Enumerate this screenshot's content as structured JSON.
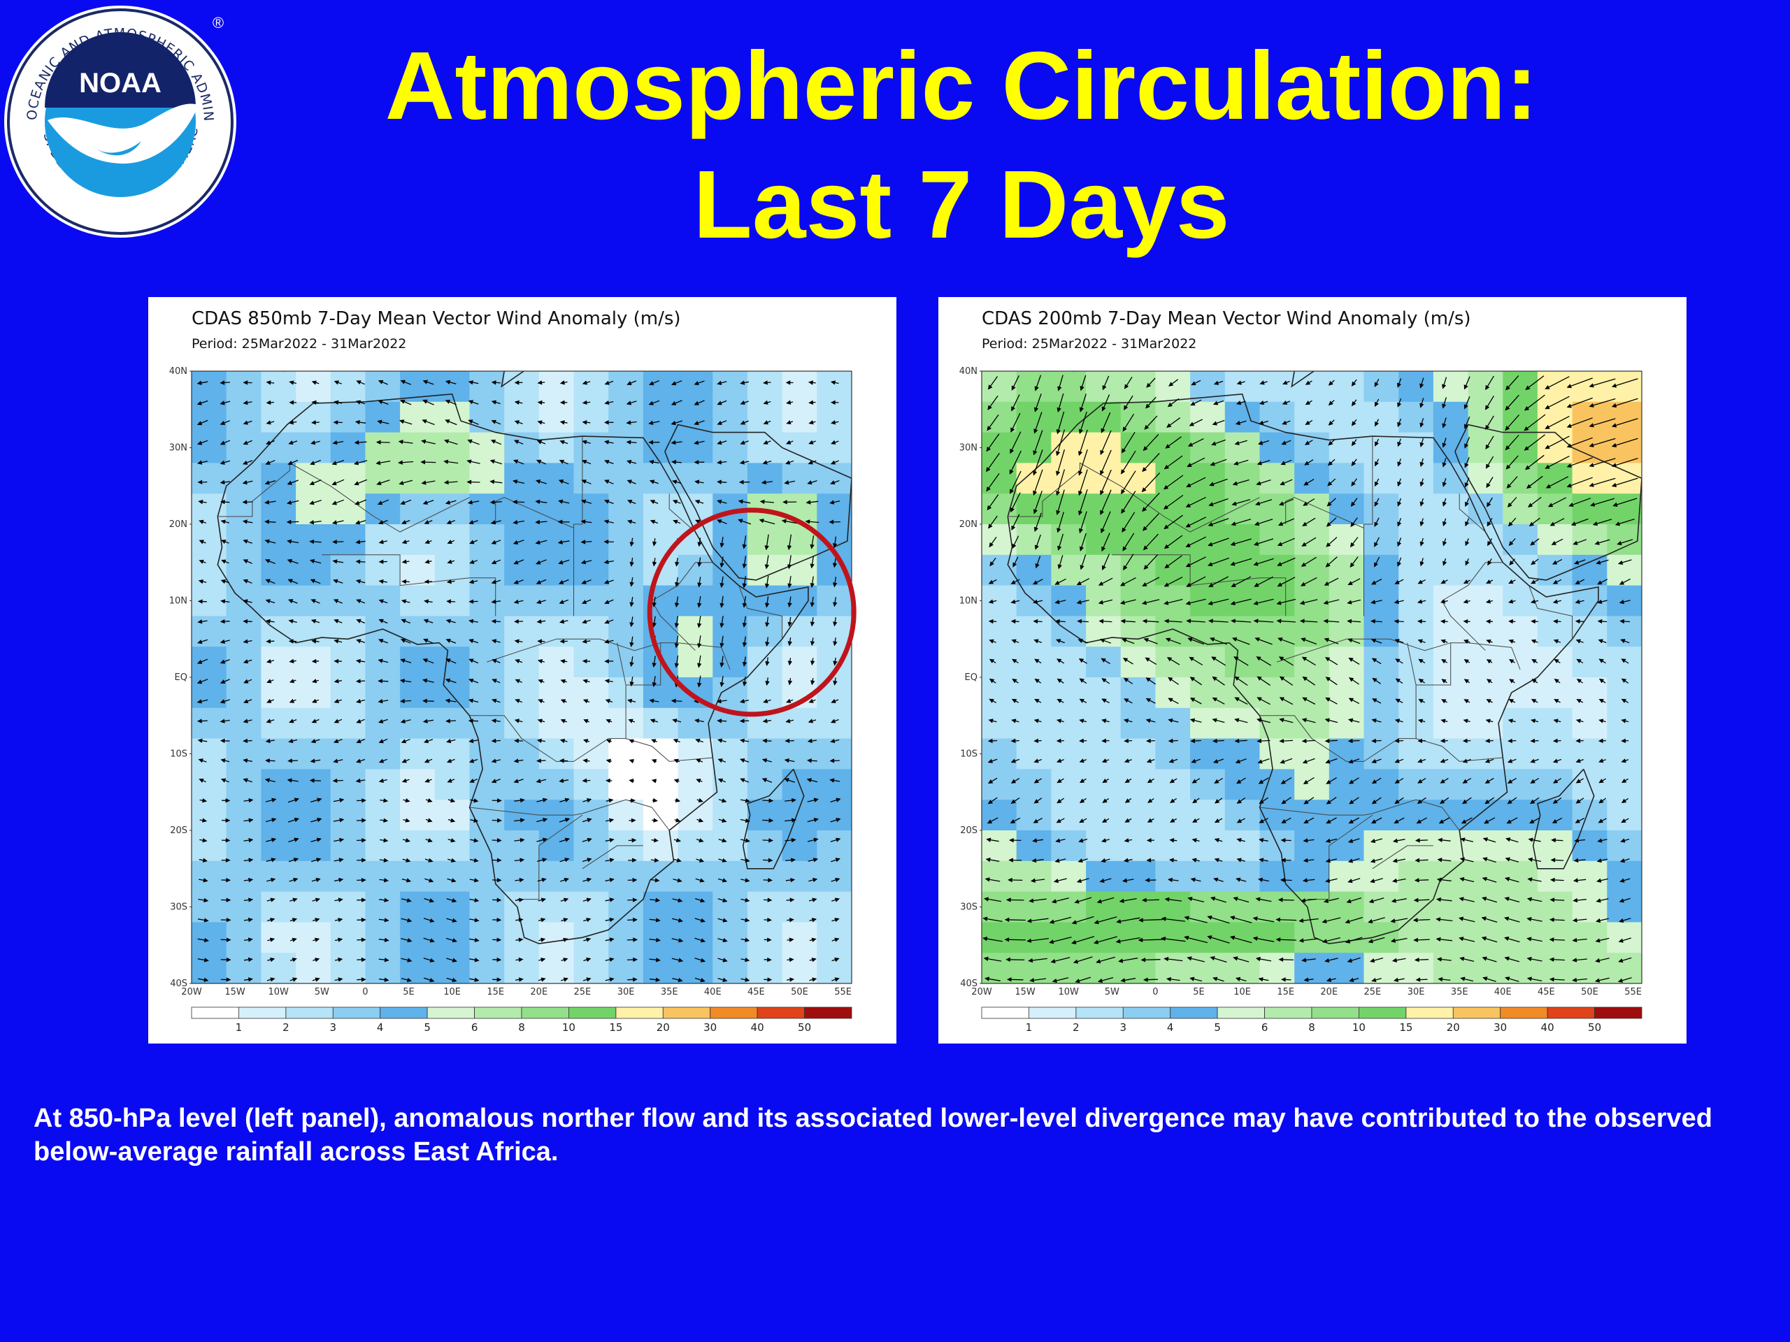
{
  "logo": {
    "ring_text_top": "NATIONAL OCEANIC AND ATMOSPHERIC ADMINISTRATION",
    "ring_text_bottom": "U.S. DEPARTMENT OF COMMERCE",
    "center": "NOAA",
    "registered": "®"
  },
  "title": {
    "line1": "Atmospheric Circulation:",
    "line2": "Last 7 Days"
  },
  "panels": [
    {
      "title": "CDAS 850mb 7-Day Mean Vector Wind Anomaly (m/s)",
      "period": "Period: 25Mar2022 - 31Mar2022",
      "highlight_circle": "East Africa",
      "pattern": "850"
    },
    {
      "title": "CDAS 200mb 7-Day Mean Vector Wind Anomaly (m/s)",
      "period": "Period: 25Mar2022 - 31Mar2022",
      "pattern": "200"
    }
  ],
  "lat_labels": [
    "40N",
    "30N",
    "20N",
    "10N",
    "EQ",
    "10S",
    "20S",
    "30S",
    "40S"
  ],
  "lon_labels": [
    "20W",
    "15W",
    "10W",
    "5W",
    "0",
    "5E",
    "10E",
    "15E",
    "20E",
    "25E",
    "30E",
    "35E",
    "40E",
    "45E",
    "50E",
    "55E"
  ],
  "colorbar": {
    "labels": [
      "1",
      "2",
      "3",
      "4",
      "5",
      "6",
      "8",
      "10",
      "15",
      "20",
      "30",
      "40",
      "50"
    ],
    "colors": [
      "#ffffff",
      "#d6f0fb",
      "#b5e3f7",
      "#8ccdf2",
      "#5fb2ea",
      "#d4f5d0",
      "#b3ebac",
      "#92e089",
      "#72d468",
      "#fff2a8",
      "#f9c45f",
      "#f28a25",
      "#e0421a",
      "#a00d0d"
    ]
  },
  "caption": "At 850-hPa level (left panel), anomalous norther flow and its associated lower-level divergence may have contributed to the observed below-average rainfall across East Africa."
}
